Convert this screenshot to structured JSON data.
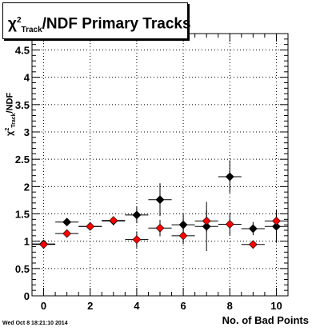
{
  "chart_data": {
    "type": "scatter",
    "title": {
      "prefix": "χ",
      "sup": "2",
      "sub": "Track",
      "suffix": "/NDF Primary Tracks"
    },
    "ylabel": {
      "prefix": "χ",
      "sup": "2",
      "sub": "Track",
      "suffix": "/NDF"
    },
    "xlabel": "No. of Bad Points",
    "timestamp": "Wed Oct  8 18:21:10 2014",
    "xlim": [
      -0.5,
      10.5
    ],
    "ylim": [
      0,
      4.8
    ],
    "grid": true,
    "x_ticks": [
      0,
      2,
      4,
      6,
      8,
      10
    ],
    "y_ticks": [
      0,
      0.5,
      1,
      1.5,
      2,
      2.5,
      3,
      3.5,
      4,
      4.5
    ],
    "x_tick_labels": [
      "0",
      "2",
      "4",
      "6",
      "8",
      "10"
    ],
    "y_tick_labels": [
      "0",
      "0.5",
      "1",
      "1.5",
      "2",
      "2.5",
      "3",
      "3.5",
      "4",
      "4.5"
    ],
    "series": [
      {
        "color": "#000000",
        "x": [
          0,
          1,
          2,
          3,
          4,
          5,
          6,
          7,
          8,
          9,
          10
        ],
        "y": [
          0.95,
          1.35,
          1.27,
          1.37,
          1.48,
          1.76,
          1.3,
          1.27,
          2.18,
          1.23,
          1.27
        ],
        "yerr": [
          0.03,
          0.05,
          0.05,
          0.08,
          0.15,
          0.3,
          0.2,
          0.45,
          0.3,
          0.12,
          0.3
        ],
        "xerr": 0.5
      },
      {
        "color": "#ff0000",
        "x": [
          0,
          1,
          2,
          3,
          4,
          5,
          6,
          7,
          8,
          9,
          10
        ],
        "y": [
          0.94,
          1.14,
          1.27,
          1.38,
          1.03,
          1.24,
          1.1,
          1.37,
          1.31,
          0.94,
          1.37
        ],
        "yerr": [
          0.03,
          0.05,
          0.05,
          0.06,
          0.15,
          0.15,
          0.15,
          0.2,
          0.2,
          0.04,
          0.15
        ],
        "xerr": 0.5
      }
    ]
  }
}
